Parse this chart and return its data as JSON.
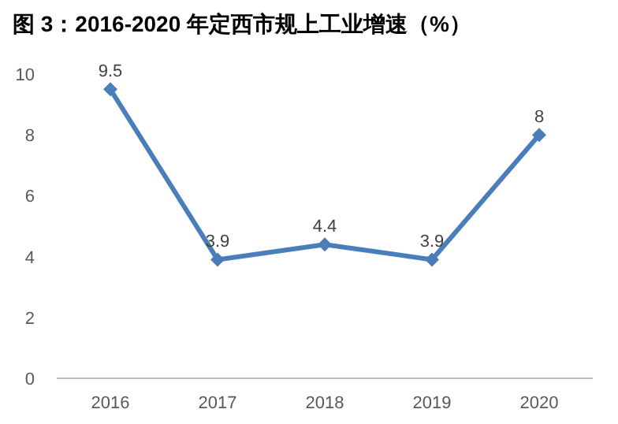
{
  "chart_data": {
    "type": "line",
    "title": "图 3：2016-2020 年定西市规上工业增速（%）",
    "categories": [
      "2016",
      "2017",
      "2018",
      "2019",
      "2020"
    ],
    "values": [
      9.5,
      3.9,
      4.4,
      3.9,
      8
    ],
    "color": "#4a7ebb",
    "marker": "diamond",
    "data_labels": true,
    "ylim": [
      0,
      10
    ],
    "yticks": [
      0,
      2,
      4,
      6,
      8,
      10
    ]
  }
}
